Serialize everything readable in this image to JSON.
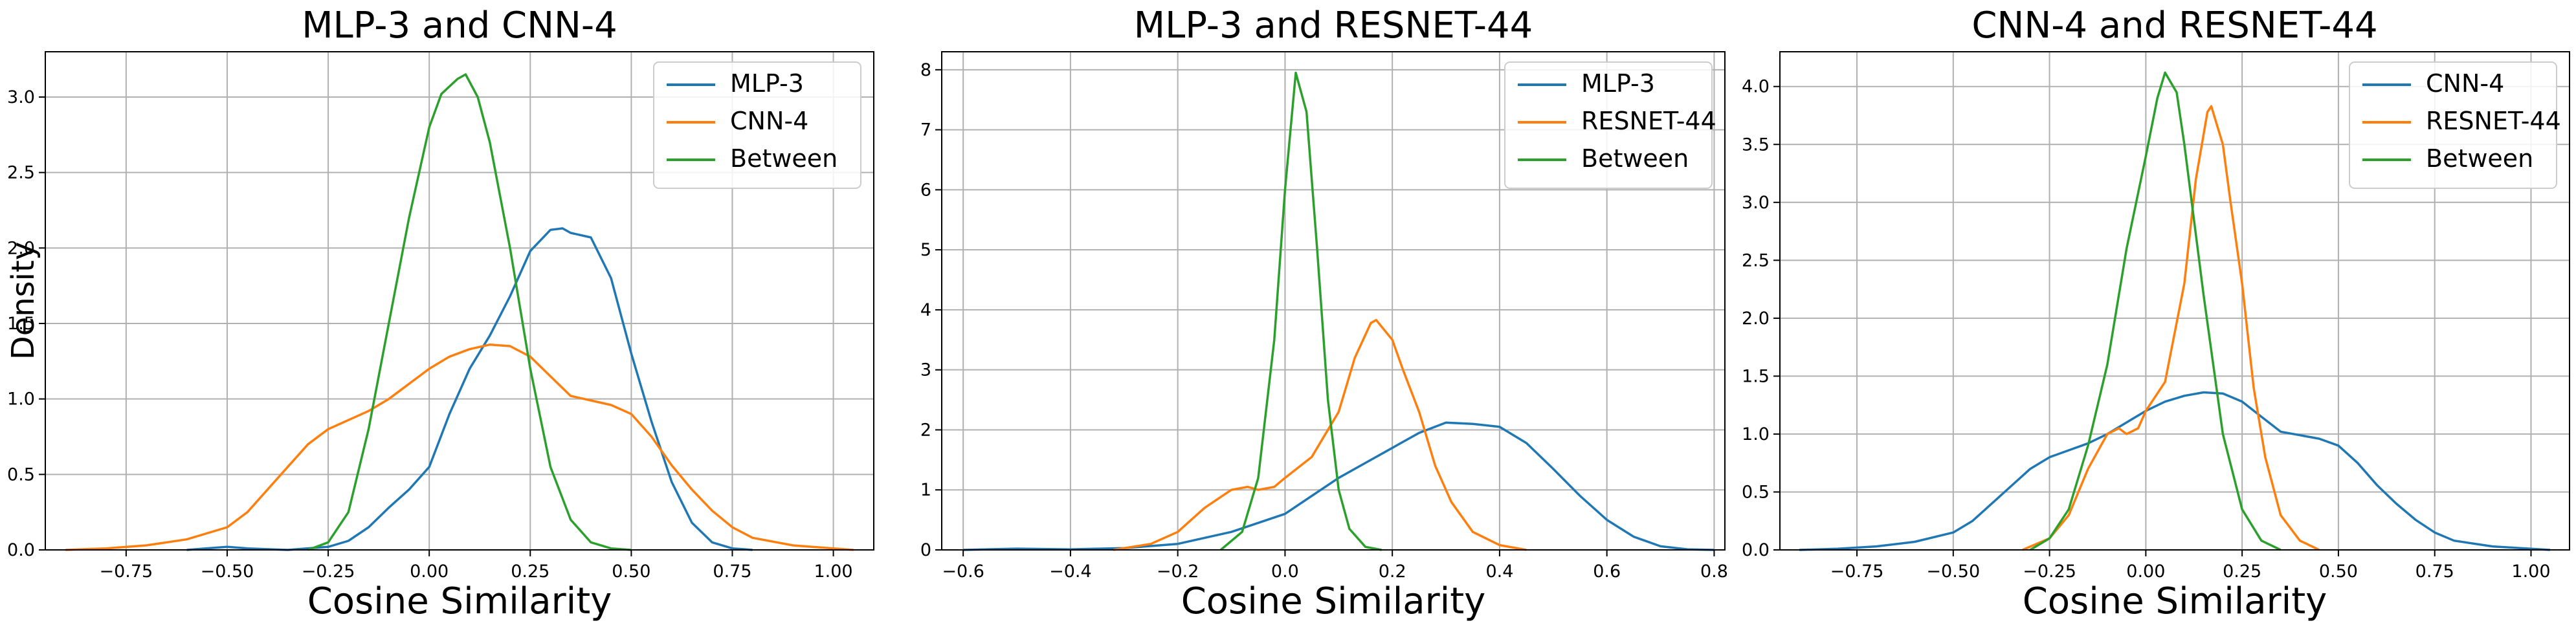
{
  "figure": {
    "shared_ylabel": "Density",
    "colors": {
      "blue": "#1f77b4",
      "orange": "#ff7f0e",
      "green": "#2ca02c",
      "grid": "#b0b0b0"
    }
  },
  "chart_data": [
    {
      "type": "line",
      "title": "MLP-3 and CNN-4",
      "xlabel": "Cosine Similarity",
      "ylabel": "Density",
      "xlim": [
        -0.95,
        1.1
      ],
      "ylim": [
        0,
        3.3
      ],
      "xticks": [
        -0.75,
        -0.5,
        -0.25,
        0.0,
        0.25,
        0.5,
        0.75,
        1.0
      ],
      "xtick_labels": [
        "−0.75",
        "−0.50",
        "−0.25",
        "0.00",
        "0.25",
        "0.50",
        "0.75",
        "1.00"
      ],
      "yticks": [
        0,
        0.5,
        1.0,
        1.5,
        2.0,
        2.5,
        3.0
      ],
      "ytick_labels": [
        "0.0",
        "0.5",
        "1.0",
        "1.5",
        "2.0",
        "2.5",
        "3.0"
      ],
      "grid": true,
      "legend_position": "top-right",
      "series": [
        {
          "name": "MLP-3",
          "color": "#1f77b4",
          "points": [
            [
              -0.6,
              0
            ],
            [
              -0.5,
              0.02
            ],
            [
              -0.45,
              0.01
            ],
            [
              -0.35,
              0.0
            ],
            [
              -0.25,
              0.02
            ],
            [
              -0.2,
              0.06
            ],
            [
              -0.15,
              0.15
            ],
            [
              -0.1,
              0.28
            ],
            [
              -0.05,
              0.4
            ],
            [
              0.0,
              0.55
            ],
            [
              0.05,
              0.9
            ],
            [
              0.1,
              1.2
            ],
            [
              0.15,
              1.42
            ],
            [
              0.2,
              1.68
            ],
            [
              0.25,
              1.98
            ],
            [
              0.3,
              2.12
            ],
            [
              0.33,
              2.13
            ],
            [
              0.35,
              2.1
            ],
            [
              0.4,
              2.07
            ],
            [
              0.45,
              1.8
            ],
            [
              0.5,
              1.3
            ],
            [
              0.55,
              0.85
            ],
            [
              0.6,
              0.45
            ],
            [
              0.65,
              0.18
            ],
            [
              0.7,
              0.05
            ],
            [
              0.75,
              0.01
            ],
            [
              0.8,
              0
            ]
          ]
        },
        {
          "name": "CNN-4",
          "color": "#ff7f0e",
          "points": [
            [
              -0.9,
              0
            ],
            [
              -0.8,
              0.01
            ],
            [
              -0.7,
              0.03
            ],
            [
              -0.6,
              0.07
            ],
            [
              -0.5,
              0.15
            ],
            [
              -0.45,
              0.25
            ],
            [
              -0.4,
              0.4
            ],
            [
              -0.35,
              0.55
            ],
            [
              -0.3,
              0.7
            ],
            [
              -0.25,
              0.8
            ],
            [
              -0.2,
              0.86
            ],
            [
              -0.15,
              0.92
            ],
            [
              -0.1,
              1.0
            ],
            [
              -0.05,
              1.1
            ],
            [
              0.0,
              1.2
            ],
            [
              0.05,
              1.28
            ],
            [
              0.1,
              1.33
            ],
            [
              0.15,
              1.36
            ],
            [
              0.2,
              1.35
            ],
            [
              0.25,
              1.28
            ],
            [
              0.3,
              1.15
            ],
            [
              0.35,
              1.02
            ],
            [
              0.4,
              0.99
            ],
            [
              0.45,
              0.96
            ],
            [
              0.5,
              0.9
            ],
            [
              0.55,
              0.75
            ],
            [
              0.6,
              0.56
            ],
            [
              0.65,
              0.4
            ],
            [
              0.7,
              0.26
            ],
            [
              0.75,
              0.15
            ],
            [
              0.8,
              0.08
            ],
            [
              0.9,
              0.03
            ],
            [
              1.0,
              0.01
            ],
            [
              1.05,
              0
            ]
          ]
        },
        {
          "name": "Between",
          "color": "#2ca02c",
          "points": [
            [
              -0.3,
              0
            ],
            [
              -0.25,
              0.05
            ],
            [
              -0.2,
              0.25
            ],
            [
              -0.15,
              0.8
            ],
            [
              -0.1,
              1.5
            ],
            [
              -0.05,
              2.2
            ],
            [
              0.0,
              2.8
            ],
            [
              0.03,
              3.02
            ],
            [
              0.07,
              3.12
            ],
            [
              0.09,
              3.15
            ],
            [
              0.12,
              3.0
            ],
            [
              0.15,
              2.7
            ],
            [
              0.2,
              2.0
            ],
            [
              0.25,
              1.2
            ],
            [
              0.3,
              0.55
            ],
            [
              0.35,
              0.2
            ],
            [
              0.4,
              0.05
            ],
            [
              0.45,
              0.01
            ],
            [
              0.5,
              0
            ]
          ]
        }
      ]
    },
    {
      "type": "line",
      "title": "MLP-3 and RESNET-44",
      "xlabel": "Cosine Similarity",
      "ylabel": "",
      "xlim": [
        -0.64,
        0.82
      ],
      "ylim": [
        0,
        8.3
      ],
      "xticks": [
        -0.6,
        -0.4,
        -0.2,
        0.0,
        0.2,
        0.4,
        0.6,
        0.8
      ],
      "xtick_labels": [
        "−0.6",
        "−0.4",
        "−0.2",
        "0.0",
        "0.2",
        "0.4",
        "0.6",
        "0.8"
      ],
      "yticks": [
        0,
        1,
        2,
        3,
        4,
        5,
        6,
        7,
        8
      ],
      "ytick_labels": [
        "0",
        "1",
        "2",
        "3",
        "4",
        "5",
        "6",
        "7",
        "8"
      ],
      "grid": true,
      "legend_position": "top-right",
      "series": [
        {
          "name": "MLP-3",
          "color": "#1f77b4",
          "points": [
            [
              -0.6,
              0
            ],
            [
              -0.5,
              0.02
            ],
            [
              -0.4,
              0.01
            ],
            [
              -0.3,
              0.03
            ],
            [
              -0.2,
              0.1
            ],
            [
              -0.1,
              0.3
            ],
            [
              0.0,
              0.6
            ],
            [
              0.05,
              0.9
            ],
            [
              0.1,
              1.2
            ],
            [
              0.15,
              1.45
            ],
            [
              0.2,
              1.7
            ],
            [
              0.25,
              1.95
            ],
            [
              0.3,
              2.12
            ],
            [
              0.35,
              2.1
            ],
            [
              0.4,
              2.05
            ],
            [
              0.45,
              1.78
            ],
            [
              0.5,
              1.35
            ],
            [
              0.55,
              0.9
            ],
            [
              0.6,
              0.5
            ],
            [
              0.65,
              0.22
            ],
            [
              0.7,
              0.06
            ],
            [
              0.75,
              0.01
            ],
            [
              0.8,
              0
            ]
          ]
        },
        {
          "name": "RESNET-44",
          "color": "#ff7f0e",
          "points": [
            [
              -0.32,
              0
            ],
            [
              -0.25,
              0.1
            ],
            [
              -0.2,
              0.3
            ],
            [
              -0.15,
              0.7
            ],
            [
              -0.1,
              1.0
            ],
            [
              -0.07,
              1.05
            ],
            [
              -0.05,
              1.0
            ],
            [
              -0.02,
              1.05
            ],
            [
              0.0,
              1.2
            ],
            [
              0.05,
              1.55
            ],
            [
              0.1,
              2.3
            ],
            [
              0.13,
              3.2
            ],
            [
              0.16,
              3.78
            ],
            [
              0.17,
              3.83
            ],
            [
              0.2,
              3.5
            ],
            [
              0.22,
              3.0
            ],
            [
              0.25,
              2.3
            ],
            [
              0.28,
              1.4
            ],
            [
              0.31,
              0.8
            ],
            [
              0.35,
              0.3
            ],
            [
              0.4,
              0.08
            ],
            [
              0.45,
              0
            ]
          ]
        },
        {
          "name": "Between",
          "color": "#2ca02c",
          "points": [
            [
              -0.12,
              0
            ],
            [
              -0.08,
              0.3
            ],
            [
              -0.05,
              1.2
            ],
            [
              -0.02,
              3.5
            ],
            [
              0.0,
              6.0
            ],
            [
              0.02,
              7.95
            ],
            [
              0.04,
              7.3
            ],
            [
              0.06,
              5.0
            ],
            [
              0.08,
              2.5
            ],
            [
              0.1,
              1.0
            ],
            [
              0.12,
              0.35
            ],
            [
              0.15,
              0.05
            ],
            [
              0.18,
              0
            ]
          ]
        }
      ]
    },
    {
      "type": "line",
      "title": "CNN-4 and RESNET-44",
      "xlabel": "Cosine Similarity",
      "ylabel": "",
      "xlim": [
        -0.95,
        1.1
      ],
      "ylim": [
        0,
        4.3
      ],
      "xticks": [
        -0.75,
        -0.5,
        -0.25,
        0.0,
        0.25,
        0.5,
        0.75,
        1.0
      ],
      "xtick_labels": [
        "−0.75",
        "−0.50",
        "−0.25",
        "0.00",
        "0.25",
        "0.50",
        "0.75",
        "1.00"
      ],
      "yticks": [
        0,
        0.5,
        1.0,
        1.5,
        2.0,
        2.5,
        3.0,
        3.5,
        4.0
      ],
      "ytick_labels": [
        "0.0",
        "0.5",
        "1.0",
        "1.5",
        "2.0",
        "2.5",
        "3.0",
        "3.5",
        "4.0"
      ],
      "grid": true,
      "legend_position": "top-right",
      "series": [
        {
          "name": "CNN-4",
          "color": "#1f77b4",
          "points": [
            [
              -0.9,
              0
            ],
            [
              -0.8,
              0.01
            ],
            [
              -0.7,
              0.03
            ],
            [
              -0.6,
              0.07
            ],
            [
              -0.5,
              0.15
            ],
            [
              -0.45,
              0.25
            ],
            [
              -0.4,
              0.4
            ],
            [
              -0.35,
              0.55
            ],
            [
              -0.3,
              0.7
            ],
            [
              -0.25,
              0.8
            ],
            [
              -0.2,
              0.86
            ],
            [
              -0.15,
              0.92
            ],
            [
              -0.1,
              1.0
            ],
            [
              -0.05,
              1.1
            ],
            [
              0.0,
              1.2
            ],
            [
              0.05,
              1.28
            ],
            [
              0.1,
              1.33
            ],
            [
              0.15,
              1.36
            ],
            [
              0.2,
              1.35
            ],
            [
              0.25,
              1.28
            ],
            [
              0.3,
              1.15
            ],
            [
              0.35,
              1.02
            ],
            [
              0.4,
              0.99
            ],
            [
              0.45,
              0.96
            ],
            [
              0.5,
              0.9
            ],
            [
              0.55,
              0.75
            ],
            [
              0.6,
              0.56
            ],
            [
              0.65,
              0.4
            ],
            [
              0.7,
              0.26
            ],
            [
              0.75,
              0.15
            ],
            [
              0.8,
              0.08
            ],
            [
              0.9,
              0.03
            ],
            [
              1.0,
              0.01
            ],
            [
              1.05,
              0
            ]
          ]
        },
        {
          "name": "RESNET-44",
          "color": "#ff7f0e",
          "points": [
            [
              -0.32,
              0
            ],
            [
              -0.25,
              0.1
            ],
            [
              -0.2,
              0.3
            ],
            [
              -0.15,
              0.7
            ],
            [
              -0.1,
              1.0
            ],
            [
              -0.07,
              1.05
            ],
            [
              -0.05,
              1.0
            ],
            [
              -0.02,
              1.05
            ],
            [
              0.0,
              1.2
            ],
            [
              0.05,
              1.45
            ],
            [
              0.1,
              2.3
            ],
            [
              0.13,
              3.2
            ],
            [
              0.16,
              3.78
            ],
            [
              0.17,
              3.83
            ],
            [
              0.2,
              3.5
            ],
            [
              0.22,
              3.0
            ],
            [
              0.25,
              2.3
            ],
            [
              0.28,
              1.4
            ],
            [
              0.31,
              0.8
            ],
            [
              0.35,
              0.3
            ],
            [
              0.4,
              0.08
            ],
            [
              0.45,
              0
            ]
          ]
        },
        {
          "name": "Between",
          "color": "#2ca02c",
          "points": [
            [
              -0.3,
              0
            ],
            [
              -0.25,
              0.1
            ],
            [
              -0.2,
              0.35
            ],
            [
              -0.15,
              0.9
            ],
            [
              -0.1,
              1.6
            ],
            [
              -0.05,
              2.6
            ],
            [
              0.0,
              3.4
            ],
            [
              0.03,
              3.9
            ],
            [
              0.05,
              4.12
            ],
            [
              0.08,
              3.95
            ],
            [
              0.1,
              3.5
            ],
            [
              0.15,
              2.2
            ],
            [
              0.2,
              1.0
            ],
            [
              0.25,
              0.35
            ],
            [
              0.3,
              0.08
            ],
            [
              0.35,
              0
            ]
          ]
        }
      ]
    }
  ]
}
